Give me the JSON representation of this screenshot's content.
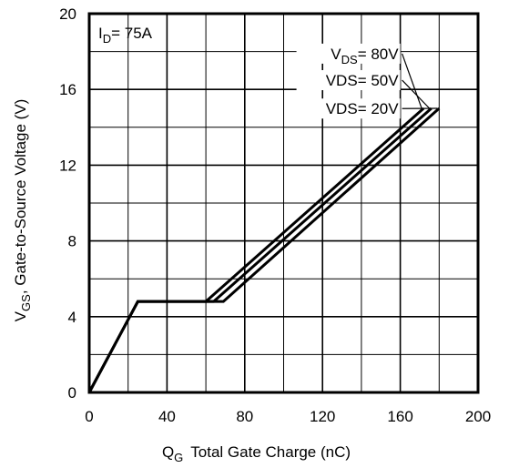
{
  "chart_data": {
    "type": "line",
    "x_axis": {
      "label": "Q",
      "label_sub": "G",
      "label_rest": "Total Gate Charge (nC)",
      "min": 0,
      "max": 200,
      "ticks": [
        0,
        40,
        80,
        120,
        160,
        200
      ],
      "tick_labels": [
        "0",
        "40",
        "80",
        "120",
        "160",
        "200"
      ]
    },
    "y_axis": {
      "label": "V",
      "label_sub": "GS",
      "label_rest": ", Gate-to-Source Voltage (V)",
      "min": 0,
      "max": 20,
      "ticks": [
        0,
        4,
        8,
        12,
        16,
        20
      ],
      "tick_labels": [
        "0",
        "4",
        "8",
        "12",
        "16",
        "20"
      ]
    },
    "grid": {
      "x_lines": [
        20,
        40,
        60,
        80,
        100,
        120,
        140,
        160,
        180
      ],
      "y_lines": [
        2,
        4,
        6,
        8,
        10,
        12,
        14,
        16,
        18
      ]
    },
    "condition": {
      "main": "I",
      "sub": "D",
      "rest": "= 75A"
    },
    "series": [
      {
        "label_main": "V",
        "label_sub": "DS",
        "label_rest": "= 80V",
        "x": [
          0,
          25,
          60,
          172
        ],
        "y": [
          0,
          4.8,
          4.8,
          15.0
        ],
        "label_x": 160,
        "label_y": 17.6,
        "leader_end_x": 171,
        "leader_end_y": 15.0
      },
      {
        "label_main": "VDS",
        "label_sub": "",
        "label_rest": "= 50V",
        "x": [
          0,
          25,
          64,
          176
        ],
        "y": [
          0,
          4.8,
          4.8,
          15.0
        ],
        "label_x": 160,
        "label_y": 16.2,
        "leader_end_x": 175,
        "leader_end_y": 15.0
      },
      {
        "label_main": "VDS",
        "label_sub": "",
        "label_rest": "= 20V",
        "x": [
          0,
          25,
          69,
          180
        ],
        "y": [
          0,
          4.8,
          4.8,
          15.0
        ],
        "label_x": 160,
        "label_y": 14.7,
        "leader_end_x": 179,
        "leader_end_y": 15.0
      }
    ]
  }
}
